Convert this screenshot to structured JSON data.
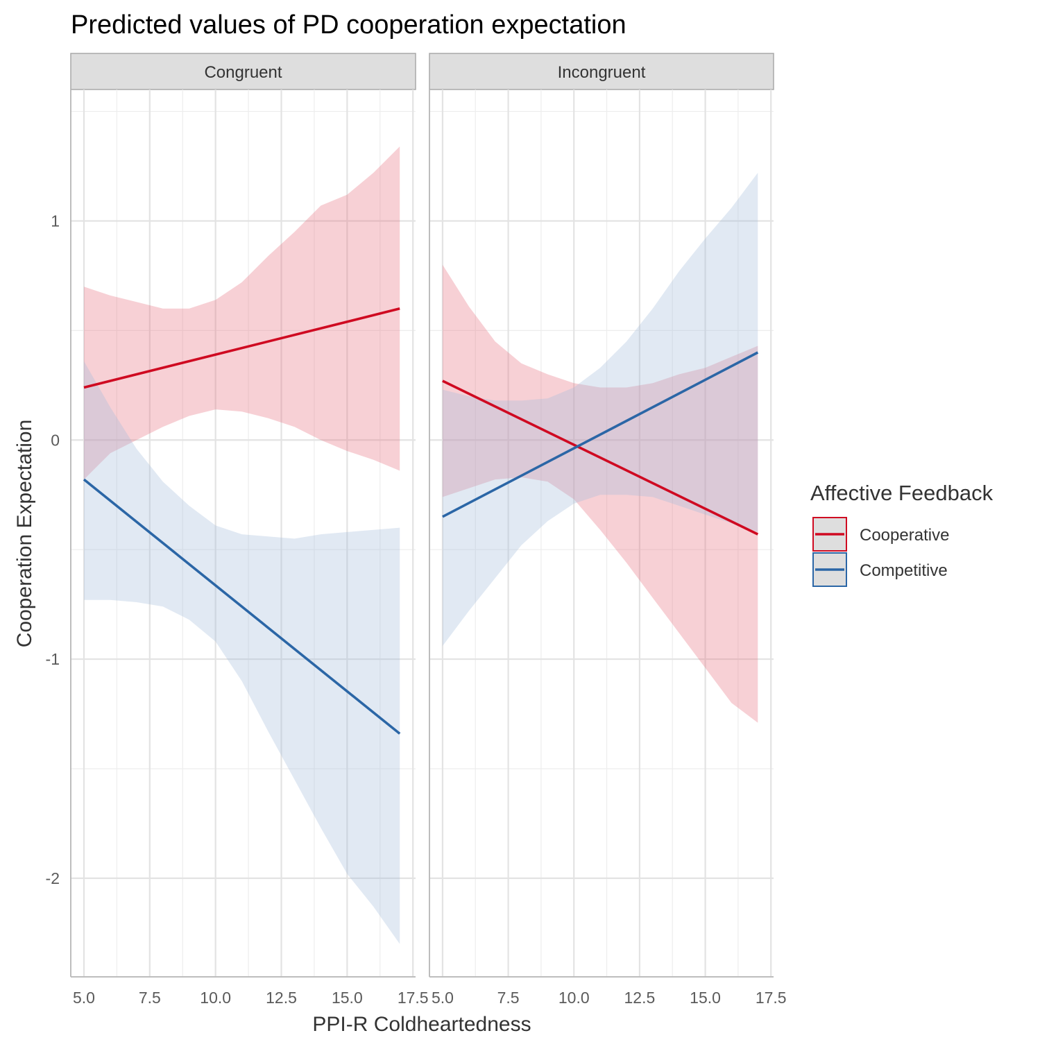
{
  "chart_data": {
    "type": "line",
    "title": "Predicted values of PD cooperation expectation",
    "xlabel": "PPI-R Coldheartedness",
    "ylabel": "Cooperation Expectation",
    "xlim": [
      4.5,
      17.6
    ],
    "ylim": [
      -2.45,
      1.6
    ],
    "x_ticks": [
      5.0,
      7.5,
      10.0,
      12.5,
      15.0,
      17.5
    ],
    "x_tick_labels": [
      "5.0",
      "7.5",
      "10.0",
      "12.5",
      "15.0",
      "17.5"
    ],
    "y_ticks": [
      1,
      0,
      -1,
      -2
    ],
    "y_tick_labels": [
      "1",
      "0",
      "-1",
      "-2"
    ],
    "grid": true,
    "legend": {
      "title": "Affective Feedback",
      "position": "right",
      "entries": [
        "Cooperative",
        "Competitive"
      ]
    },
    "colors": {
      "Cooperative": "#cf0a21",
      "Competitive": "#2b66a6"
    },
    "band_colors": {
      "Cooperative": "#e8707f",
      "Competitive": "#a5bbda"
    },
    "panels": [
      {
        "label": "Congruent",
        "series": [
          {
            "name": "Cooperative",
            "x": [
              5,
              17
            ],
            "y": [
              0.24,
              0.6
            ],
            "ci_x": [
              5,
              6,
              7,
              8,
              9,
              10,
              11,
              12,
              13,
              14,
              15,
              16,
              17
            ],
            "ci_lower": [
              -0.18,
              -0.06,
              0.0,
              0.06,
              0.11,
              0.14,
              0.13,
              0.1,
              0.06,
              0.0,
              -0.05,
              -0.09,
              -0.14
            ],
            "ci_upper": [
              0.7,
              0.66,
              0.63,
              0.6,
              0.6,
              0.64,
              0.72,
              0.84,
              0.95,
              1.07,
              1.12,
              1.22,
              1.34
            ]
          },
          {
            "name": "Competitive",
            "x": [
              5,
              17
            ],
            "y": [
              -0.18,
              -1.34
            ],
            "ci_x": [
              5,
              6,
              7,
              8,
              9,
              10,
              11,
              12,
              13,
              14,
              15,
              16,
              17
            ],
            "ci_lower": [
              -0.73,
              -0.73,
              -0.74,
              -0.76,
              -0.82,
              -0.92,
              -1.1,
              -1.33,
              -1.55,
              -1.77,
              -1.98,
              -2.13,
              -2.3
            ],
            "ci_upper": [
              0.36,
              0.15,
              -0.04,
              -0.19,
              -0.3,
              -0.39,
              -0.43,
              -0.44,
              -0.45,
              -0.43,
              -0.42,
              -0.41,
              -0.4
            ]
          }
        ]
      },
      {
        "label": "Incongruent",
        "series": [
          {
            "name": "Cooperative",
            "x": [
              5,
              17
            ],
            "y": [
              0.27,
              -0.43
            ],
            "ci_x": [
              5,
              6,
              7,
              8,
              9,
              10,
              11,
              12,
              13,
              14,
              15,
              16,
              17
            ],
            "ci_lower": [
              -0.26,
              -0.22,
              -0.18,
              -0.17,
              -0.19,
              -0.27,
              -0.41,
              -0.56,
              -0.72,
              -0.88,
              -1.04,
              -1.2,
              -1.29
            ],
            "ci_upper": [
              0.8,
              0.61,
              0.45,
              0.35,
              0.3,
              0.26,
              0.24,
              0.24,
              0.26,
              0.3,
              0.33,
              0.38,
              0.43
            ]
          },
          {
            "name": "Competitive",
            "x": [
              5,
              17
            ],
            "y": [
              -0.35,
              0.4
            ],
            "ci_x": [
              5,
              6,
              7,
              8,
              9,
              10,
              11,
              12,
              13,
              14,
              15,
              16,
              17
            ],
            "ci_lower": [
              -0.94,
              -0.78,
              -0.63,
              -0.48,
              -0.37,
              -0.29,
              -0.25,
              -0.25,
              -0.26,
              -0.3,
              -0.34,
              -0.38,
              -0.42
            ],
            "ci_upper": [
              0.23,
              0.2,
              0.18,
              0.18,
              0.19,
              0.24,
              0.33,
              0.45,
              0.6,
              0.77,
              0.92,
              1.06,
              1.22
            ]
          }
        ]
      }
    ]
  }
}
